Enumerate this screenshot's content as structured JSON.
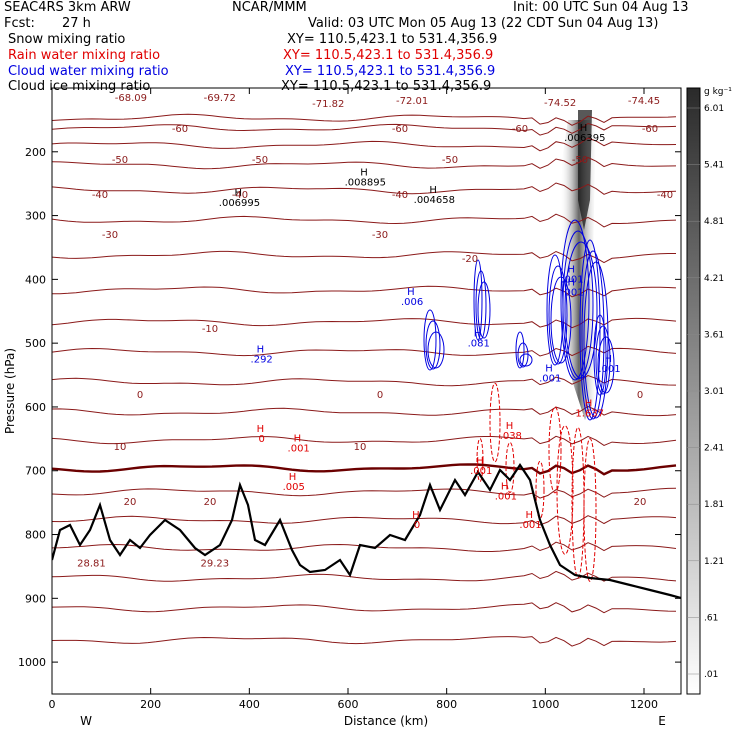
{
  "header": {
    "model": "SEAC4RS  3km ARW",
    "org": "NCAR/MMM",
    "init": "Init: 00 UTC Sun 04 Aug 13",
    "fcst_label": "Fcst:",
    "fcst_value": "27 h",
    "valid": "Valid: 03 UTC Mon 05 Aug 13 (22 CDT Sun 04 Aug 13)",
    "fields": [
      {
        "name": "Snow mixing ratio",
        "xy": "XY= 110.5,423.1 to 531.4,356.9",
        "color": "#000000"
      },
      {
        "name": "Rain water mixing ratio",
        "xy": "XY= 110.5,423.1 to 531.4,356.9",
        "color": "#e00000"
      },
      {
        "name": "Cloud water mixing ratio",
        "xy": "XY= 110.5,423.1 to 531.4,356.9",
        "color": "#0000e0"
      },
      {
        "name": "Cloud ice mixing ratio",
        "xy": "XY= 110.5,423.1 to 531.4,356.9",
        "color": "#000000"
      }
    ]
  },
  "chart_data": {
    "type": "contour-cross-section",
    "xlabel": "Distance (km)",
    "ylabel": "Pressure (hPa)",
    "xlim": [
      0,
      1275
    ],
    "ylim": [
      1050,
      100
    ],
    "x_ticks": [
      0,
      200,
      400,
      600,
      800,
      1000,
      1200
    ],
    "y_ticks": [
      200,
      300,
      400,
      500,
      600,
      700,
      800,
      900,
      1000
    ],
    "x_end_labels": {
      "left": "W",
      "right": "E"
    },
    "temperature_contours_C": [
      -60,
      -50,
      -40,
      -30,
      -20,
      -10,
      0,
      10,
      20
    ],
    "temperature_color": "#8b1a1a",
    "extrema_labels": [
      {
        "text": "-68.09",
        "x": 160,
        "p": 120
      },
      {
        "text": "-69.72",
        "x": 340,
        "p": 120
      },
      {
        "text": "-71.82",
        "x": 560,
        "p": 130
      },
      {
        "text": "-72.01",
        "x": 730,
        "p": 125
      },
      {
        "text": "-74.52",
        "x": 1030,
        "p": 128
      },
      {
        "text": "-74.45",
        "x": 1200,
        "p": 125
      },
      {
        "text": "28.81",
        "x": 80,
        "p": 850
      },
      {
        "text": "29.23",
        "x": 330,
        "p": 850
      }
    ],
    "snow_maxima": [
      {
        "text": ".006995",
        "x": 380,
        "p": 285
      },
      {
        "text": ".008895",
        "x": 635,
        "p": 253
      },
      {
        "text": ".004658",
        "x": 775,
        "p": 280
      },
      {
        "text": ".006395",
        "x": 1080,
        "p": 183
      }
    ],
    "cloud_water_maxima": [
      {
        "text": ".292",
        "x": 425,
        "p": 530
      },
      {
        "text": ".006",
        "x": 730,
        "p": 440
      },
      {
        "text": ".081",
        "x": 865,
        "p": 505
      },
      {
        "text": ".001",
        "x": 1010,
        "p": 560
      },
      {
        "text": ".001",
        "x": 1055,
        "p": 405
      },
      {
        "text": ".001",
        "x": 1055,
        "p": 425
      },
      {
        "text": ".001",
        "x": 1130,
        "p": 545
      }
    ],
    "rain_maxima": [
      {
        "text": "0",
        "x": 425,
        "p": 655
      },
      {
        "text": ".001",
        "x": 500,
        "p": 670
      },
      {
        "text": ".005",
        "x": 490,
        "p": 730
      },
      {
        "text": ".038",
        "x": 930,
        "p": 650
      },
      {
        "text": ".001",
        "x": 870,
        "p": 705
      },
      {
        "text": ".001",
        "x": 920,
        "p": 745
      },
      {
        "text": ".001",
        "x": 970,
        "p": 790
      },
      {
        "text": "1.637",
        "x": 1090,
        "p": 615
      },
      {
        "text": "0",
        "x": 740,
        "p": 790
      }
    ],
    "colorbar": {
      "unit": "g kg⁻¹",
      "labels": [
        ".01",
        ".61",
        "1.21",
        "1.81",
        "2.41",
        "3.01",
        "3.61",
        "4.21",
        "4.81",
        "5.41",
        "6.01"
      ]
    }
  }
}
